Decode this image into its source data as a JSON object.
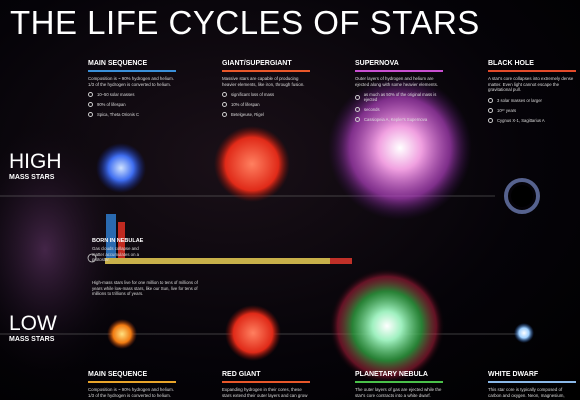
{
  "title": "THE LIFE CYCLES OF STARS",
  "high_mass": {
    "label": "HIGH",
    "sublabel": "MASS STARS",
    "stages": [
      {
        "heading": "MAIN SEQUENCE",
        "description": "Composition is ~ 90% hydrogen and helium. 1/3 of the hydrogen is converted to helium.",
        "facts": [
          "10–50 solar masses",
          "90% of lifespan",
          "Spica, Theta Orionis C"
        ]
      },
      {
        "heading": "GIANT/SUPERGIANT",
        "description": "Massive stars are capable of producing heavier elements, like iron, through fusion.",
        "facts": [
          "significant loss of mass",
          "10% of lifespan",
          "Betelgeuse, Rigel"
        ]
      },
      {
        "heading": "SUPERNOVA",
        "description": "Outer layers of hydrogen and helium are ejected along with some heavier elements.",
        "facts": [
          "as much as 50% of the original mass is ejected",
          "seconds",
          "Cassiopeia A, Kepler's Supernova"
        ]
      },
      {
        "heading": "BLACK HOLE",
        "description": "A star's core collapses into extremely dense matter. Even light cannot escape the gravitational pull.",
        "facts": [
          "3 solar masses or larger",
          "10²⁰ years",
          "Cygnus X-1, Sagittarius A"
        ]
      }
    ]
  },
  "low_mass": {
    "label": "LOW",
    "sublabel": "MASS STARS",
    "stages": [
      {
        "heading": "MAIN SEQUENCE",
        "description": "Composition is ~ 90% hydrogen and helium. 1/3 of the hydrogen is converted to helium."
      },
      {
        "heading": "RED GIANT",
        "description": "Expanding hydrogen in their cores, these stars extend their outer layers and can grow"
      },
      {
        "heading": "PLANETARY NEBULA",
        "description": "The outer layers of gas are ejected while the star's core contracts into a white dwarf."
      },
      {
        "heading": "WHITE DWARF",
        "description": "This star core is typically composed of carbon and oxygen. Neon, magnesium,"
      }
    ]
  },
  "nebula": {
    "heading": "BORN IN NEBULAE",
    "description": "Gas clouds collapse and matter accumulates on a protostar."
  },
  "lifespan_note": "High-mass stars live for one million to tens of millions of years while low-mass stars, like our Sun, live for tens of millions to trillions of years."
}
